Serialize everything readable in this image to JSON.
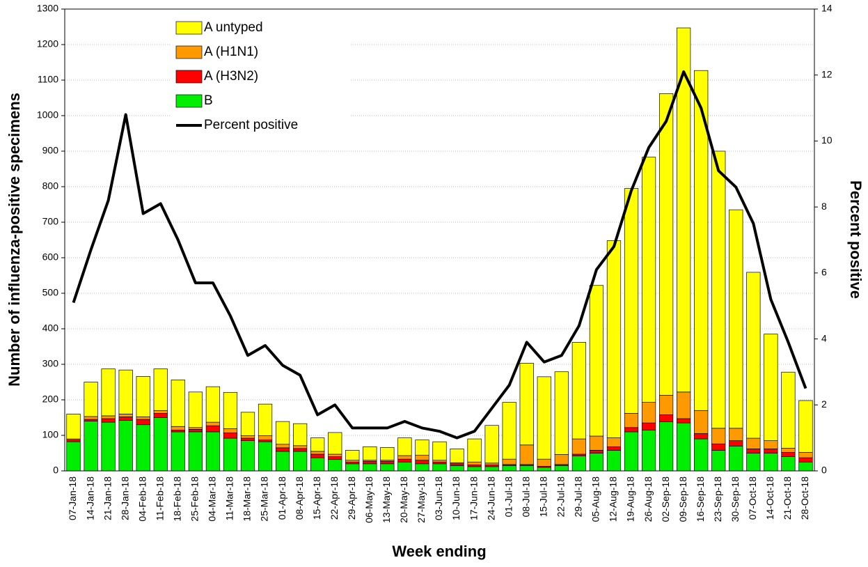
{
  "chart_data": {
    "type": "bar",
    "stacked": true,
    "x_label": "Week ending",
    "y_label": "Number of influenza-positive specimens",
    "y2_label": "Percent positive",
    "categories": [
      "07-Jan-18",
      "14-Jan-18",
      "21-Jan-18",
      "28-Jan-18",
      "04-Feb-18",
      "11-Feb-18",
      "18-Feb-18",
      "25-Feb-18",
      "04-Mar-18",
      "11-Mar-18",
      "18-Mar-18",
      "25-Mar-18",
      "01-Apr-18",
      "08-Apr-18",
      "15-Apr-18",
      "22-Apr-18",
      "29-Apr-18",
      "06-May-18",
      "13-May-18",
      "20-May-18",
      "27-May-18",
      "03-Jun-18",
      "10-Jun-18",
      "17-Jun-18",
      "24-Jun-18",
      "01-Jul-18",
      "08-Jul-18",
      "15-Jul-18",
      "22-Jul-18",
      "29-Jul-18",
      "05-Aug-18",
      "12-Aug-18",
      "19-Aug-18",
      "26-Aug-18",
      "02-Sep-18",
      "09-Sep-18",
      "16-Sep-18",
      "23-Sep-18",
      "30-Sep-18",
      "07-Oct-18",
      "14-Oct-18",
      "21-Oct-18",
      "28-Oct-18"
    ],
    "series": [
      {
        "name": "A untyped",
        "color": "#ffff00",
        "values": [
          70,
          97,
          132,
          124,
          114,
          117,
          131,
          100,
          100,
          102,
          66,
          89,
          64,
          62,
          38,
          61,
          28,
          38,
          36,
          50,
          43,
          52,
          39,
          65,
          106,
          160,
          230,
          232,
          233,
          272,
          424,
          555,
          633,
          690,
          849,
          1025,
          957,
          780,
          615,
          467,
          300,
          214,
          146
        ]
      },
      {
        "name": "A (H1N1)",
        "color": "#ff9900",
        "values": [
          3,
          8,
          8,
          8,
          7,
          8,
          10,
          5,
          10,
          12,
          7,
          12,
          10,
          8,
          8,
          7,
          5,
          3,
          3,
          10,
          14,
          5,
          3,
          8,
          5,
          15,
          55,
          20,
          28,
          43,
          40,
          25,
          40,
          58,
          55,
          75,
          65,
          44,
          35,
          30,
          23,
          12,
          15
        ]
      },
      {
        "name": "A (H3N2)",
        "color": "#ff0000",
        "values": [
          5,
          5,
          10,
          10,
          15,
          12,
          5,
          7,
          17,
          15,
          7,
          5,
          10,
          8,
          10,
          8,
          5,
          7,
          7,
          8,
          10,
          5,
          5,
          5,
          5,
          3,
          3,
          3,
          3,
          5,
          8,
          10,
          12,
          20,
          20,
          12,
          15,
          18,
          15,
          12,
          12,
          12,
          12
        ]
      },
      {
        "name": "B",
        "color": "#00ee00",
        "values": [
          82,
          140,
          137,
          142,
          130,
          150,
          110,
          110,
          110,
          92,
          85,
          82,
          55,
          55,
          37,
          32,
          20,
          20,
          20,
          25,
          20,
          20,
          15,
          12,
          12,
          15,
          15,
          10,
          15,
          42,
          50,
          58,
          110,
          115,
          138,
          135,
          90,
          58,
          70,
          50,
          50,
          40,
          25
        ]
      },
      {
        "name": "Percent positive",
        "color": "#000000",
        "type": "line",
        "axis": "y2",
        "values": [
          5.1,
          6.7,
          8.2,
          10.8,
          7.8,
          8.1,
          7.0,
          5.7,
          5.7,
          4.7,
          3.5,
          3.8,
          3.2,
          2.9,
          1.7,
          2.0,
          1.3,
          1.3,
          1.3,
          1.5,
          1.3,
          1.2,
          1.0,
          1.2,
          1.9,
          2.6,
          3.9,
          3.3,
          3.5,
          4.4,
          6.1,
          6.8,
          8.5,
          9.8,
          10.6,
          12.1,
          11.0,
          9.1,
          8.6,
          7.5,
          5.2,
          3.9,
          2.5
        ]
      }
    ],
    "ylim": [
      0,
      1300
    ],
    "yticks": [
      0,
      100,
      200,
      300,
      400,
      500,
      600,
      700,
      800,
      900,
      1000,
      1100,
      1200,
      1300
    ],
    "y2lim": [
      0,
      14
    ],
    "y2ticks": [
      0,
      2,
      4,
      6,
      8,
      10,
      12,
      14
    ],
    "grid": true
  }
}
